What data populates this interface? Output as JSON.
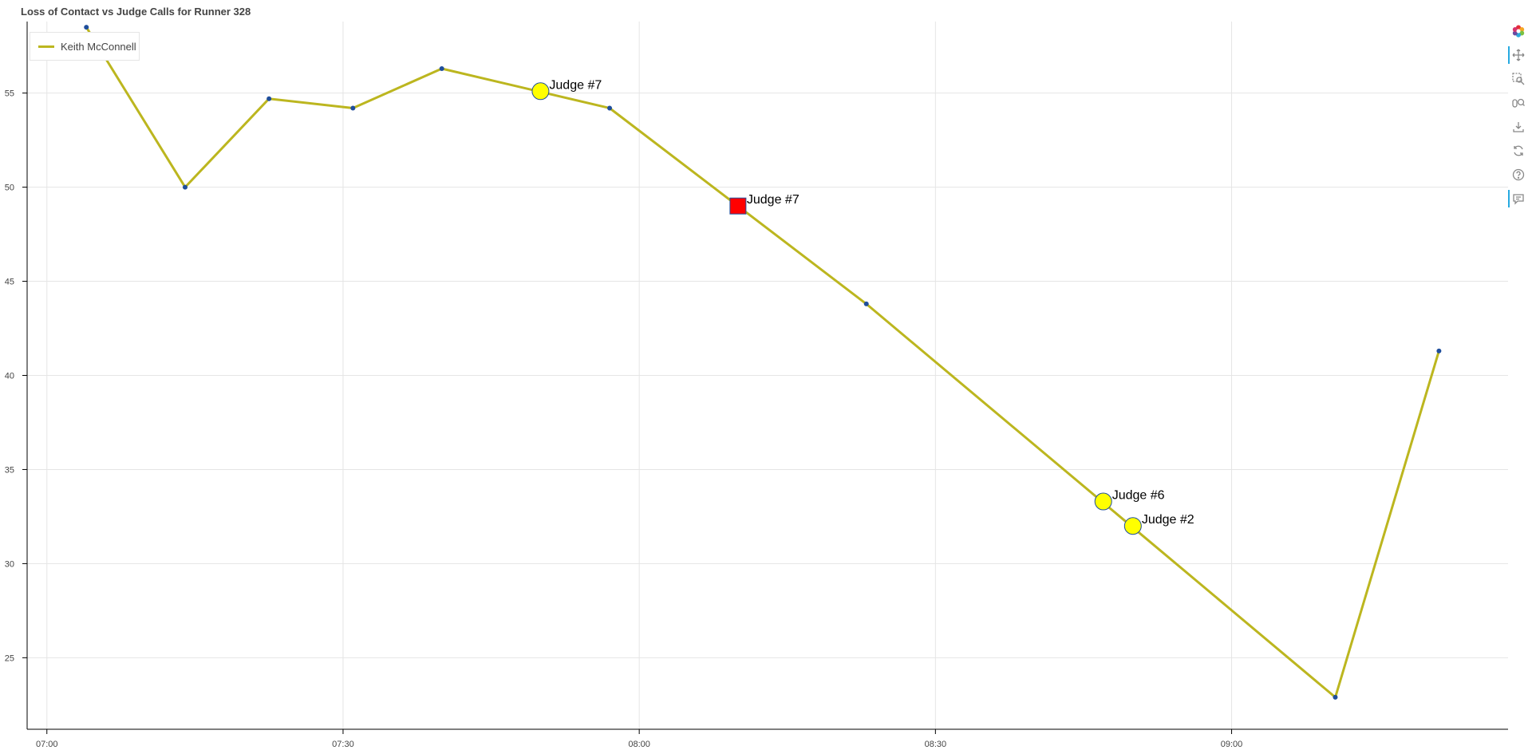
{
  "chart_data": {
    "type": "line",
    "title": "Loss of Contact vs Judge Calls for Runner 328",
    "xlabel": "",
    "ylabel": "",
    "x_axis": {
      "type": "datetime",
      "range": [
        "06:58",
        "09:28"
      ],
      "ticks": [
        "07:00",
        "07:30",
        "08:00",
        "08:30",
        "09:00"
      ]
    },
    "y_axis": {
      "range": [
        21.2,
        58.8
      ],
      "ticks": [
        25,
        30,
        35,
        40,
        45,
        50,
        55
      ]
    },
    "grid": true,
    "legend": {
      "position": "top-left",
      "entries": [
        "Keith McConnell"
      ]
    },
    "series": [
      {
        "name": "Keith McConnell",
        "color": "#bcb61f",
        "marker_color": "#1f4e9c",
        "points": [
          {
            "x": "07:04",
            "y": 58.5
          },
          {
            "x": "07:14",
            "y": 50.0
          },
          {
            "x": "07:22:30",
            "y": 54.7
          },
          {
            "x": "07:31",
            "y": 54.2
          },
          {
            "x": "07:40",
            "y": 56.3
          },
          {
            "x": "07:57",
            "y": 54.2
          },
          {
            "x": "08:23",
            "y": 43.8
          },
          {
            "x": "09:10:30",
            "y": 22.9
          },
          {
            "x": "09:21",
            "y": 41.3
          }
        ]
      }
    ],
    "annotations": [
      {
        "label": "Judge #7",
        "x": "07:50",
        "y": 55.1,
        "marker": "circle",
        "color": "#ffff00"
      },
      {
        "label": "Judge #7",
        "x": "08:10",
        "y": 49.0,
        "marker": "square",
        "color": "#ff0000"
      },
      {
        "label": "Judge #6",
        "x": "08:47",
        "y": 33.3,
        "marker": "circle",
        "color": "#ffff00"
      },
      {
        "label": "Judge #2",
        "x": "08:50",
        "y": 32.0,
        "marker": "circle",
        "color": "#ffff00"
      }
    ]
  },
  "toolbar": {
    "tools": [
      {
        "name": "bokeh-logo-icon",
        "active": false
      },
      {
        "name": "pan-icon",
        "active": true
      },
      {
        "name": "box-zoom-icon",
        "active": false
      },
      {
        "name": "wheel-zoom-icon",
        "active": false
      },
      {
        "name": "save-icon",
        "active": false
      },
      {
        "name": "reset-icon",
        "active": false
      },
      {
        "name": "help-icon",
        "active": false
      },
      {
        "name": "hover-icon",
        "active": true
      }
    ]
  }
}
